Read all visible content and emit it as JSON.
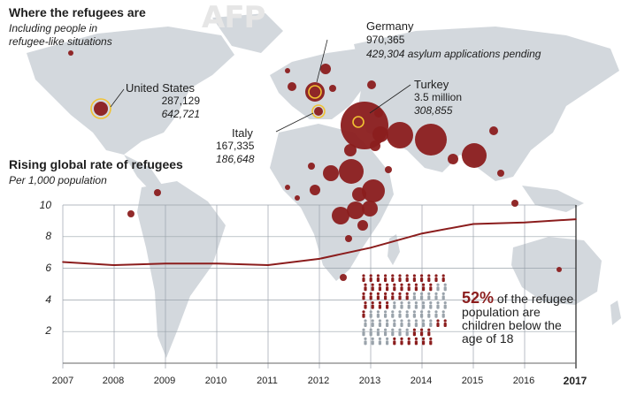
{
  "watermark": "AFP",
  "title": "Where the refugees are",
  "subtitle_lines": [
    "Including people in",
    "refugee-like situations"
  ],
  "countries": [
    {
      "name": "United States",
      "refugees": "287,129",
      "pending": "642,721"
    },
    {
      "name": "Germany",
      "refugees": "970,365",
      "pending": "429,304 asylum applications pending"
    },
    {
      "name": "Turkey",
      "refugees": "3.5 million",
      "pending": "308,855"
    },
    {
      "name": "Italy",
      "refugees": "167,335",
      "pending": "186,648"
    }
  ],
  "chart_data": {
    "type": "line",
    "title": "Rising global rate of refugees",
    "subtitle": "Per 1,000 population",
    "x": [
      "2007",
      "2008",
      "2009",
      "2010",
      "2011",
      "2012",
      "2013",
      "2014",
      "2015",
      "2016",
      "2017"
    ],
    "values": [
      6.4,
      6.2,
      6.3,
      6.3,
      6.2,
      6.6,
      7.3,
      8.2,
      8.8,
      8.9,
      9.1
    ],
    "yticks": [
      2,
      4,
      6,
      8,
      10
    ],
    "ylim": [
      0,
      11
    ],
    "line_color": "#8b1d1d",
    "highlight_label": "2017"
  },
  "children": {
    "percent": "52%",
    "text_lines": [
      "of the refugee",
      "population are",
      "children below the",
      "age of 18"
    ]
  },
  "colors": {
    "bubble": "#8b1d1d",
    "land": "#d3d8dd",
    "highlight": "#f1c232",
    "text": "#1e1e1e"
  }
}
